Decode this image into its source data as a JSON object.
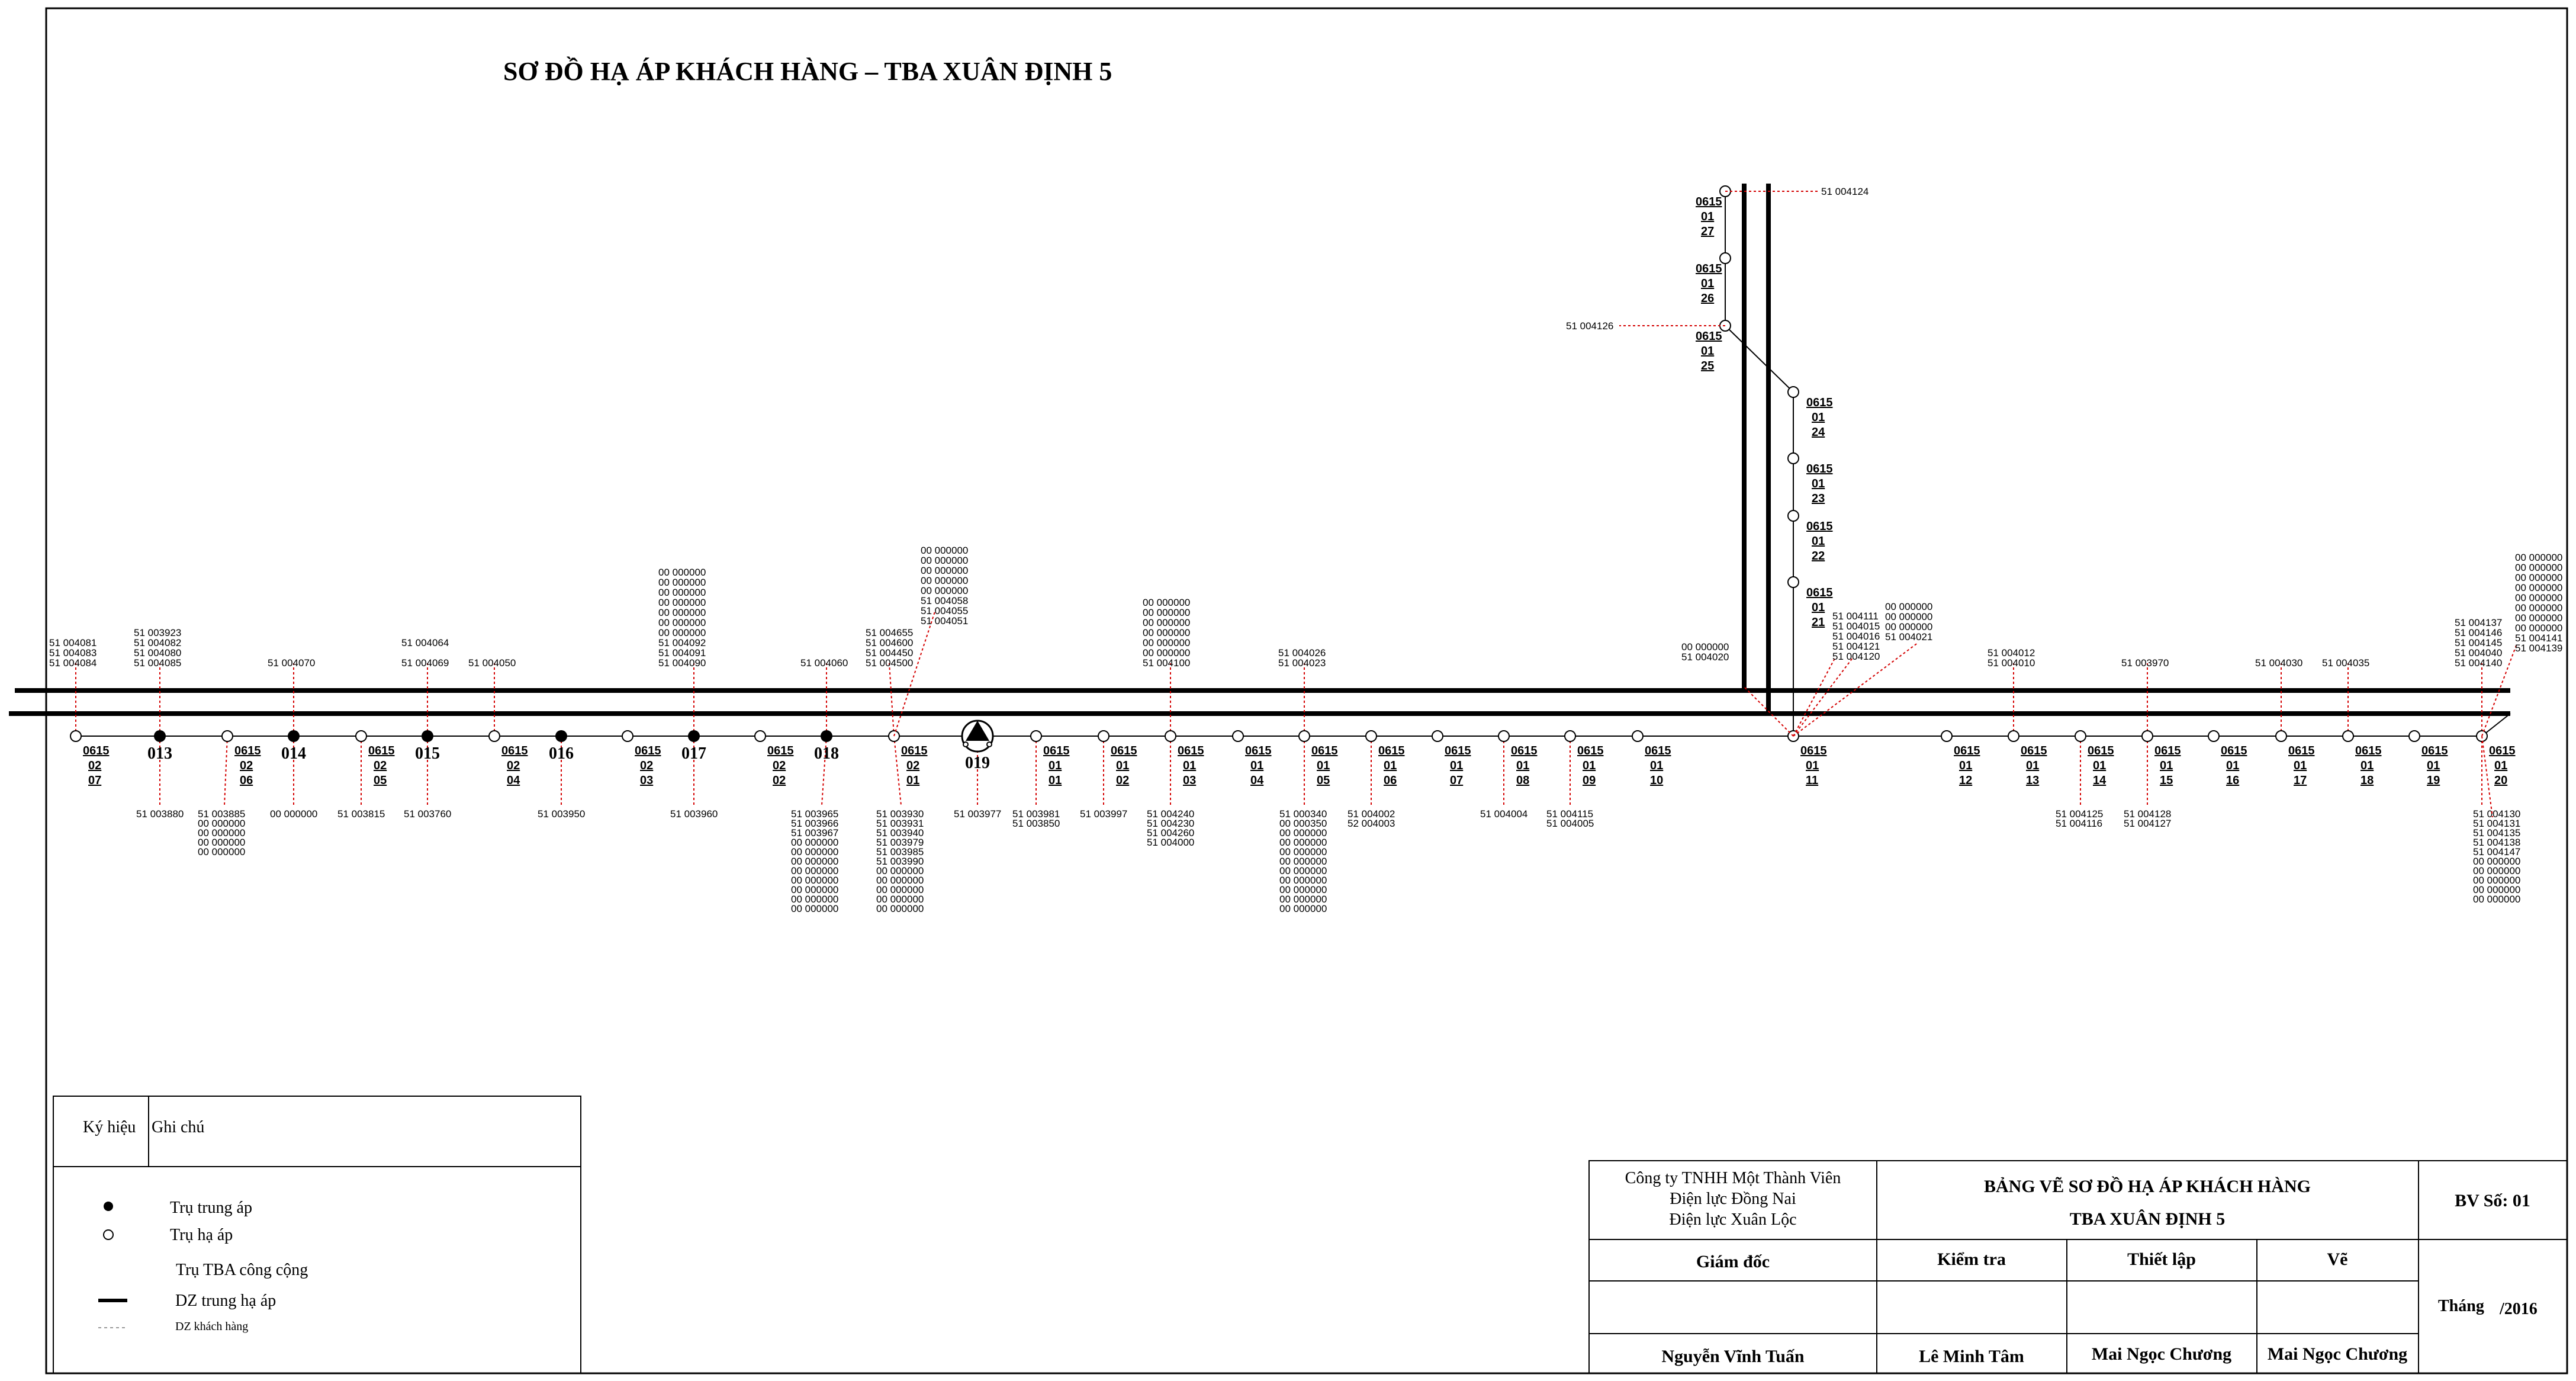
{
  "title": "SƠ ĐỒ HẠ ÁP KHÁCH HÀNG – TBA XUÂN ĐỊNH 5",
  "main_nodes": [
    {
      "id": "e07",
      "kind": "ha",
      "label": [
        "0615",
        "02",
        "07"
      ],
      "above": [
        "51  004081",
        "51  004083",
        "51  004084"
      ],
      "below": []
    },
    {
      "id": "p013",
      "kind": "trung",
      "label": [
        "013"
      ],
      "above": [
        "51  003923",
        "51  004082",
        "51  004080",
        "51  004085"
      ],
      "below": [
        "51  003880"
      ]
    },
    {
      "id": "e06",
      "kind": "ha",
      "label": [
        "0615",
        "02",
        "06"
      ],
      "above": [],
      "below": [
        "51  003885",
        "00  000000",
        "00  000000",
        "00  000000",
        "00  000000"
      ]
    },
    {
      "id": "p014",
      "kind": "trung",
      "label": [
        "014"
      ],
      "above": [
        "51  004070"
      ],
      "below": [
        "00  000000"
      ]
    },
    {
      "id": "e05",
      "kind": "ha",
      "label": [
        "0615",
        "02",
        "05"
      ],
      "above": [],
      "below": [
        "51  003815"
      ]
    },
    {
      "id": "p015",
      "kind": "trung",
      "label": [
        "015"
      ],
      "above": [
        "51  004064",
        "",
        "51  004069"
      ],
      "below": [
        "51  003760"
      ]
    },
    {
      "id": "e04",
      "kind": "ha",
      "label": [
        "0615",
        "02",
        "04"
      ],
      "above": [
        "51  004050"
      ],
      "below": []
    },
    {
      "id": "p016",
      "kind": "trung",
      "label": [
        "016"
      ],
      "above": [],
      "below": [
        "51  003950"
      ]
    },
    {
      "id": "e03",
      "kind": "ha",
      "label": [
        "0615",
        "02",
        "03"
      ],
      "above": [],
      "below": []
    },
    {
      "id": "p017",
      "kind": "trung",
      "label": [
        "017"
      ],
      "above": [
        "00  000000",
        "00  000000",
        "00  000000",
        "00  000000",
        "00  000000",
        "00  000000",
        "00  000000",
        "51  004092",
        "51  004091",
        "51  004090"
      ],
      "below": [
        "51  003960"
      ]
    },
    {
      "id": "e02",
      "kind": "ha",
      "label": [
        "0615",
        "02",
        "02"
      ],
      "above": [],
      "below": []
    },
    {
      "id": "p018",
      "kind": "trung",
      "label": [
        "018"
      ],
      "above": [
        "51  004060"
      ],
      "below": [
        "51  003965",
        "51  003966",
        "51  003967",
        "00  000000",
        "00  000000",
        "00  000000",
        "00  000000",
        "00  000000",
        "00  000000",
        "00  000000",
        "00  000000"
      ]
    },
    {
      "id": "e01",
      "kind": "ha",
      "label": [
        "0615",
        "02",
        "01"
      ],
      "above": [
        "51  004655",
        "51  004600",
        "51  004450",
        "51  004500"
      ],
      "below": [
        "51  003930",
        "51  003931",
        "51  003940",
        "51  003979",
        "51  003985",
        "51  003990",
        "00  000000",
        "00  000000",
        "00  000000",
        "00  000000",
        "00  000000"
      ]
    },
    {
      "id": "p019",
      "kind": "tba",
      "label": [
        "019"
      ],
      "above": [],
      "below": [
        "51  003977"
      ]
    },
    {
      "id": "f01",
      "kind": "ha",
      "label": [
        "0615",
        "01",
        "01"
      ],
      "above": [],
      "below": [
        "51  003981",
        "51  003850"
      ]
    },
    {
      "id": "f02",
      "kind": "ha",
      "label": [
        "0615",
        "01",
        "02"
      ],
      "above": [],
      "below": [
        "51  003997"
      ]
    },
    {
      "id": "f03",
      "kind": "ha",
      "label": [
        "0615",
        "01",
        "03"
      ],
      "above": [
        "00  000000",
        "00  000000",
        "00  000000",
        "00  000000",
        "00  000000",
        "00  000000",
        "51  004100"
      ],
      "below": [
        "51  004240",
        "51  004230",
        "51  004260",
        "51  004000"
      ]
    },
    {
      "id": "f04",
      "kind": "ha",
      "label": [
        "0615",
        "01",
        "04"
      ],
      "above": [],
      "below": []
    },
    {
      "id": "f05",
      "kind": "ha",
      "label": [
        "0615",
        "01",
        "05"
      ],
      "above": [
        "51  004026",
        "51  004023"
      ],
      "below": [
        "51  000340",
        "00  000350",
        "00  000000",
        "00  000000",
        "00  000000",
        "00  000000",
        "00  000000",
        "00  000000",
        "00  000000",
        "00  000000",
        "00  000000"
      ]
    },
    {
      "id": "f06",
      "kind": "ha",
      "label": [
        "0615",
        "01",
        "06"
      ],
      "above": [],
      "below": [
        "51  004002",
        "52  004003"
      ]
    },
    {
      "id": "f07",
      "kind": "ha",
      "label": [
        "0615",
        "01",
        "07"
      ],
      "above": [],
      "below": []
    },
    {
      "id": "f08",
      "kind": "ha",
      "label": [
        "0615",
        "01",
        "08"
      ],
      "above": [],
      "below": [
        "51  004004"
      ]
    },
    {
      "id": "f09",
      "kind": "ha",
      "label": [
        "0615",
        "01",
        "09"
      ],
      "above": [],
      "below": [
        "51  004115",
        "51  004005"
      ]
    },
    {
      "id": "f10",
      "kind": "ha",
      "label": [
        "0615",
        "01",
        "10"
      ],
      "above": [],
      "below": []
    },
    {
      "id": "f11",
      "kind": "ha",
      "label": [
        "0615",
        "01",
        "11"
      ],
      "above": [],
      "below": []
    },
    {
      "id": "f12",
      "kind": "ha",
      "label": [
        "0615",
        "01",
        "12"
      ],
      "above": [],
      "below": []
    },
    {
      "id": "f13",
      "kind": "ha",
      "label": [
        "0615",
        "01",
        "13"
      ],
      "above": [
        "51  004012",
        "51  004010"
      ],
      "below": []
    },
    {
      "id": "f14",
      "kind": "ha",
      "label": [
        "0615",
        "01",
        "14"
      ],
      "above": [],
      "below": [
        "51  004125",
        "51    004116"
      ]
    },
    {
      "id": "f15",
      "kind": "ha",
      "label": [
        "0615",
        "01",
        "15"
      ],
      "above": [
        "51  003970"
      ],
      "below": [
        "51  004128",
        "51  004127"
      ]
    },
    {
      "id": "f16",
      "kind": "ha",
      "label": [
        "0615",
        "01",
        "16"
      ],
      "above": [],
      "below": []
    },
    {
      "id": "f17",
      "kind": "ha",
      "label": [
        "0615",
        "01",
        "17"
      ],
      "above": [
        "51  004030"
      ],
      "below": []
    },
    {
      "id": "f18",
      "kind": "ha",
      "label": [
        "0615",
        "01",
        "18"
      ],
      "above": [
        "51  004035"
      ],
      "below": []
    },
    {
      "id": "f19",
      "kind": "ha",
      "label": [
        "0615",
        "01",
        "19"
      ],
      "above": [],
      "below": []
    },
    {
      "id": "f20",
      "kind": "ha",
      "label": [
        "0615",
        "01",
        "20"
      ],
      "above": [
        "51  004137",
        "51  004146",
        "51  004145",
        "51  004040",
        "51  004140"
      ],
      "below": [
        "51  004130",
        "51  004131",
        "51  004135",
        "51  004138",
        "51  004147",
        "00  000000",
        "00  000000",
        "00  000000",
        "00  000000",
        "00  000000"
      ]
    }
  ],
  "junction_groups": [
    {
      "lines": [
        "00  000000",
        "51  004020"
      ]
    },
    {
      "lines": [
        "51  004111",
        "51  004015",
        "51  004016",
        "51  004121",
        "51  004120"
      ]
    },
    {
      "lines": [
        "00  000000",
        "00  000000",
        "00  000000",
        "51  004021"
      ]
    },
    {
      "lines": [
        "00  000000",
        "00  000000",
        "00  000000",
        "00  000000",
        "00  000000",
        "00  000000",
        "00  000000",
        "00  000000",
        "51  004141",
        "51  004139"
      ]
    },
    {
      "lines": [
        "00  000000",
        "00  000000",
        "00  000000",
        "00  000000",
        "00  000000",
        "51  004058",
        "51  004055",
        "51  004051"
      ]
    }
  ],
  "branch_nodes": [
    {
      "label": [
        "0615",
        "01",
        "27"
      ],
      "customers": [
        "51  004124"
      ]
    },
    {
      "label": [
        "0615",
        "01",
        "26"
      ],
      "customers": []
    },
    {
      "label": [
        "0615",
        "01",
        "25"
      ],
      "customers": [
        "51  004126"
      ]
    },
    {
      "label": [
        "0615",
        "01",
        "24"
      ],
      "customers": []
    },
    {
      "label": [
        "0615",
        "01",
        "23"
      ],
      "customers": []
    },
    {
      "label": [
        "0615",
        "01",
        "22"
      ],
      "customers": []
    },
    {
      "label": [
        "0615",
        "01",
        "21"
      ],
      "customers": []
    }
  ],
  "legend": {
    "col_symbol": "Ký hiệu",
    "col_note": "Ghi chú",
    "items": [
      "Trụ trung áp",
      "Trụ hạ áp",
      "Trụ TBA công cộng",
      "DZ trung hạ áp",
      "DZ khách hàng"
    ]
  },
  "title_block": {
    "company": [
      "Công ty TNHH Một Thành Viên",
      "Điện lực Đồng Nai",
      "Điện lực Xuân Lộc"
    ],
    "drawing_title": [
      "BẢNG VẼ SƠ ĐỒ HẠ ÁP KHÁCH HÀNG",
      "TBA XUÂN ĐỊNH 5"
    ],
    "number": "BV Số: 01",
    "roles": [
      "Giám đốc",
      "Kiểm tra",
      "Thiết lập",
      "Vẽ"
    ],
    "names": [
      "Nguyễn Vĩnh Tuấn",
      "Lê Minh Tâm",
      "Mai Ngọc Chương",
      "Mai Ngọc Chương"
    ],
    "date_label": "Tháng",
    "date_value": "/2016"
  },
  "colors": {
    "line": "#000000",
    "customer": "#d40000",
    "paper": "#ffffff"
  }
}
